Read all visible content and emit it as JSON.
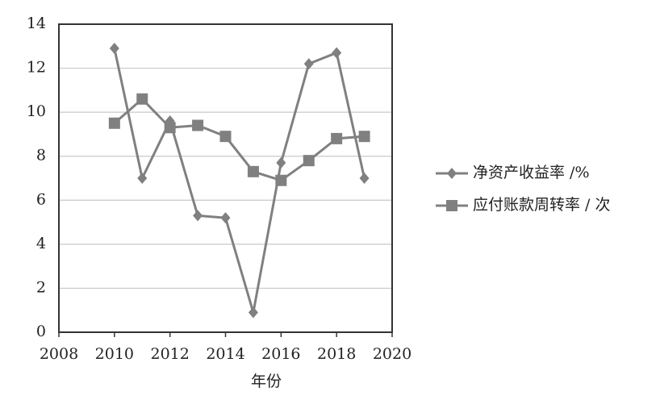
{
  "chart_data": {
    "type": "line",
    "x_label": "年份",
    "x": [
      2010,
      2011,
      2012,
      2013,
      2014,
      2015,
      2016,
      2017,
      2018,
      2019
    ],
    "series": [
      {
        "name": "净资产收益率 /%",
        "color": "#808080",
        "marker": "diamond",
        "values": [
          12.9,
          7.0,
          9.6,
          5.3,
          5.2,
          0.9,
          7.7,
          12.2,
          12.7,
          7.0
        ]
      },
      {
        "name": "应付账款周转率 / 次",
        "color": "#808080",
        "marker": "square",
        "values": [
          9.5,
          10.6,
          9.3,
          9.4,
          8.9,
          7.3,
          6.9,
          7.8,
          8.8,
          8.9
        ]
      }
    ],
    "xlim": [
      2008,
      2020
    ],
    "xticks": [
      2008,
      2010,
      2012,
      2014,
      2016,
      2018,
      2020
    ],
    "ylim": [
      0,
      14
    ],
    "yticks": [
      0,
      2,
      4,
      6,
      8,
      10,
      12,
      14
    ],
    "grid": true,
    "legend": "right"
  }
}
